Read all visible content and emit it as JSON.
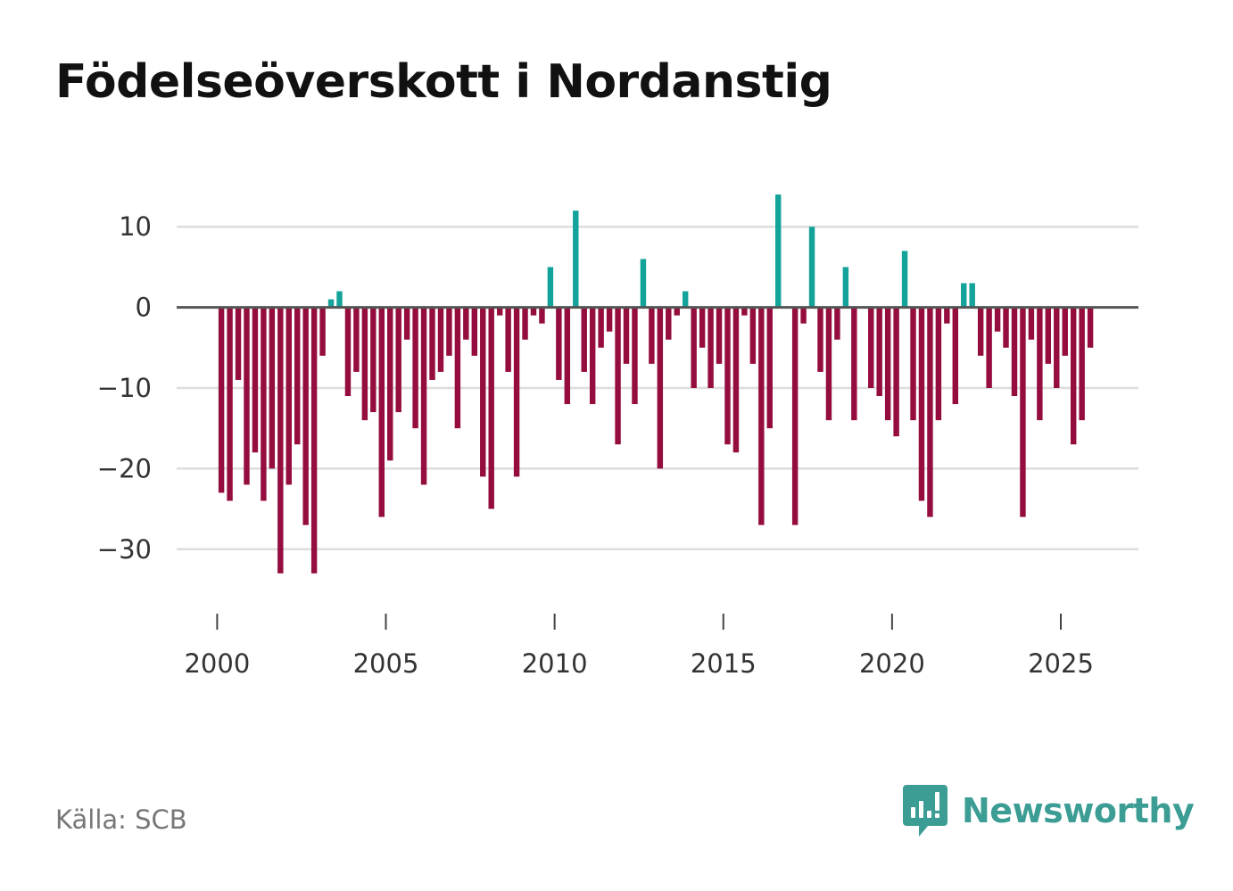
{
  "title": "Födelseöverskott i Nordanstig",
  "source": "Källa: SCB",
  "brand": {
    "name": "Newsworthy",
    "icon": "newsworthy-logo-icon"
  },
  "colors": {
    "positive": "#14a39a",
    "negative": "#950d3f",
    "grid": "#dddddd",
    "zero": "#555555",
    "brand": "#3c9d95"
  },
  "chart_data": {
    "type": "bar",
    "title": "Födelseöverskott i Nordanstig",
    "xlabel": "",
    "ylabel": "",
    "x_ticks": [
      2000,
      2005,
      2010,
      2015,
      2020,
      2025
    ],
    "x_tick_labels": [
      "2000",
      "2005",
      "2010",
      "2015",
      "2020",
      "2025"
    ],
    "xlim": [
      1998.8,
      2027.3
    ],
    "y_ticks": [
      10,
      0,
      -10,
      -20,
      -30
    ],
    "y_tick_labels": [
      "10",
      "0",
      "−10",
      "−20",
      "−30"
    ],
    "ylim": [
      -36,
      16
    ],
    "grid": true,
    "bar_width_years": 0.17,
    "x": [
      2000.125,
      2000.375,
      2000.625,
      2000.875,
      2001.125,
      2001.375,
      2001.625,
      2001.875,
      2002.125,
      2002.375,
      2002.625,
      2002.875,
      2003.125,
      2003.375,
      2003.625,
      2003.875,
      2004.125,
      2004.375,
      2004.625,
      2004.875,
      2005.125,
      2005.375,
      2005.625,
      2005.875,
      2006.125,
      2006.375,
      2006.625,
      2006.875,
      2007.125,
      2007.375,
      2007.625,
      2007.875,
      2008.125,
      2008.375,
      2008.625,
      2008.875,
      2009.125,
      2009.375,
      2009.625,
      2009.875,
      2010.125,
      2010.375,
      2010.625,
      2010.875,
      2011.125,
      2011.375,
      2011.625,
      2011.875,
      2012.125,
      2012.375,
      2012.625,
      2012.875,
      2013.125,
      2013.375,
      2013.625,
      2013.875,
      2014.125,
      2014.375,
      2014.625,
      2014.875,
      2015.125,
      2015.375,
      2015.625,
      2015.875,
      2016.125,
      2016.375,
      2016.625,
      2016.875,
      2017.125,
      2017.375,
      2017.625,
      2017.875,
      2018.125,
      2018.375,
      2018.625,
      2018.875,
      2019.125,
      2019.375,
      2019.625,
      2019.875,
      2020.125,
      2020.375,
      2020.625,
      2020.875,
      2021.125,
      2021.375,
      2021.625,
      2021.875,
      2022.125,
      2022.375,
      2022.625,
      2022.875,
      2023.125,
      2023.375,
      2023.625,
      2023.875,
      2024.125,
      2024.375,
      2024.625,
      2024.875,
      2025.125,
      2025.375,
      2025.625,
      2025.875
    ],
    "values": [
      -23,
      -24,
      -9,
      -22,
      -18,
      -24,
      -20,
      -33,
      -22,
      -17,
      -27,
      -33,
      -6,
      1,
      2,
      -11,
      -8,
      -14,
      -13,
      -26,
      -19,
      -13,
      -4,
      -15,
      -22,
      -9,
      -8,
      -6,
      -15,
      -4,
      -6,
      -21,
      -25,
      -1,
      -8,
      -21,
      -4,
      -1,
      -2,
      5,
      -9,
      -12,
      12,
      -8,
      -12,
      -5,
      -3,
      -17,
      -7,
      -12,
      6,
      -7,
      -20,
      -4,
      -1,
      2,
      -10,
      -5,
      -10,
      -7,
      -17,
      -18,
      -1,
      -7,
      -27,
      -15,
      14,
      0,
      -27,
      -2,
      10,
      -8,
      -14,
      -4,
      5,
      -14,
      0,
      -10,
      -11,
      -14,
      -16,
      7,
      -14,
      -24,
      -26,
      -14,
      -2,
      -12,
      3,
      3,
      -6,
      -10,
      -3,
      -5,
      -11,
      -26,
      -4,
      -14,
      -7,
      -10,
      -6,
      -17,
      -14,
      -5
    ]
  }
}
